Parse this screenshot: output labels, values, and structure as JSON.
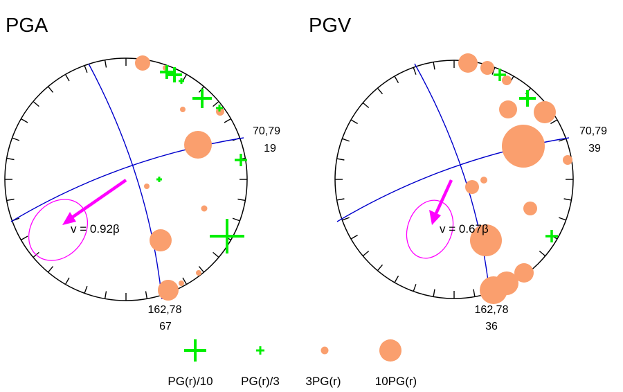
{
  "colors": {
    "circle": "#000000",
    "plane": "#0000cc",
    "marker_orange": "#fa9f6e",
    "marker_green": "#00ee00",
    "arrow": "#ff00ff"
  },
  "panels": [
    {
      "title": "PGA",
      "velocity_label": "v = 0.92β",
      "plane_a_label": "70,79",
      "plane_a_value": "19",
      "plane_b_label": "162,78",
      "plane_b_value": "67"
    },
    {
      "title": "PGV",
      "velocity_label": "v = 0.67β",
      "plane_a_label": "70,79",
      "plane_a_value": "39",
      "plane_b_label": "162,78",
      "plane_b_value": "36"
    }
  ],
  "legend": [
    {
      "label": "PG(r)/10",
      "marker": "green-plus-large"
    },
    {
      "label": "PG(r)/3",
      "marker": "green-plus-small"
    },
    {
      "label": "3PG(r)",
      "marker": "orange-circle-small"
    },
    {
      "label": "10PG(r)",
      "marker": "orange-circle-large"
    }
  ]
}
